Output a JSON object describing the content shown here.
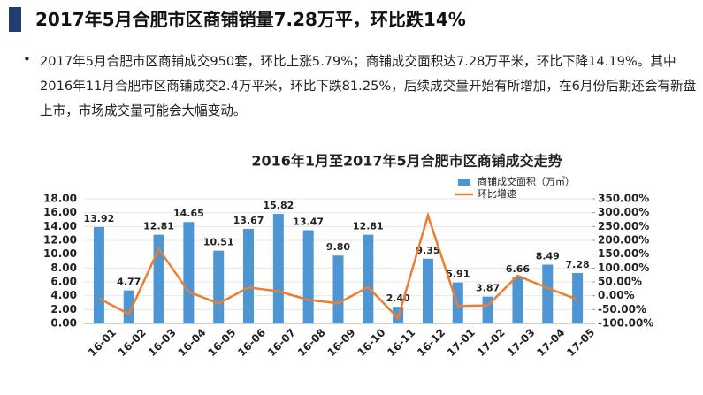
{
  "header": {
    "title": "2017年5月合肥市区商铺销量7.28万平，环比跌14%"
  },
  "bullet": "2017年5月合肥市区商铺成交950套，环比上涨5.79%；商铺成交面积达7.28万平米，环比下降14.19%。其中2016年11月合肥市区商铺成交2.4万平米，环比下跌81.25%，后续成交量开始有所增加，在6月份后期还会有新盘上市，市场成交量可能会大幅变动。",
  "chart_data": {
    "type": "bar",
    "title": "2016年1月至2017年5月合肥市区商铺成交走势",
    "categories": [
      "16-01",
      "16-02",
      "16-03",
      "16-04",
      "16-05",
      "16-06",
      "16-07",
      "16-08",
      "16-09",
      "16-10",
      "16-11",
      "16-12",
      "17-01",
      "17-02",
      "17-03",
      "17-04",
      "17-05"
    ],
    "series": [
      {
        "name": "商铺成交面积（万㎡）",
        "color": "#4e95d4",
        "type": "bar",
        "values": [
          13.92,
          4.77,
          12.81,
          14.65,
          10.51,
          13.67,
          15.82,
          13.47,
          9.8,
          12.81,
          2.4,
          9.35,
          5.91,
          3.87,
          6.66,
          8.49,
          7.28
        ],
        "value_labels": [
          "13.92",
          "4.77",
          "12.81",
          "14.65",
          "10.51",
          "13.67",
          "15.82",
          "13.47",
          "9.80",
          "12.81",
          "2.40",
          "9.35",
          "5.91",
          "3.87",
          "6.66",
          "8.49",
          "7.28"
        ]
      },
      {
        "name": "环比增速",
        "color": "#ed7d31",
        "type": "line",
        "axis": "y2",
        "values": [
          -10,
          -66,
          169,
          14,
          -28,
          30,
          16,
          -15,
          -27,
          31,
          -81,
          290,
          -37,
          -35,
          72,
          28,
          -14
        ]
      }
    ],
    "ylim": [
      0,
      18
    ],
    "yticks": [
      {
        "value": 0,
        "label": "0.00"
      },
      {
        "value": 2,
        "label": "2.00"
      },
      {
        "value": 4,
        "label": "4.00"
      },
      {
        "value": 6,
        "label": "6.00"
      },
      {
        "value": 8,
        "label": "8.00"
      },
      {
        "value": 10,
        "label": "10.00"
      },
      {
        "value": 12,
        "label": "12.00"
      },
      {
        "value": 14,
        "label": "14.00"
      },
      {
        "value": 16,
        "label": "16.00"
      },
      {
        "value": 18,
        "label": "18.00"
      }
    ],
    "y2lim": [
      -100,
      350
    ],
    "y2ticks": [
      {
        "value": -100,
        "label": "-100.00%"
      },
      {
        "value": -50,
        "label": "-50.00%"
      },
      {
        "value": 0,
        "label": "0.00%"
      },
      {
        "value": 50,
        "label": "50.00%"
      },
      {
        "value": 100,
        "label": "100.00%"
      },
      {
        "value": 150,
        "label": "150.00%"
      },
      {
        "value": 200,
        "label": "200.00%"
      },
      {
        "value": 250,
        "label": "250.00%"
      },
      {
        "value": 300,
        "label": "300.00%"
      },
      {
        "value": 350,
        "label": "350.00%"
      }
    ],
    "grid": true
  }
}
